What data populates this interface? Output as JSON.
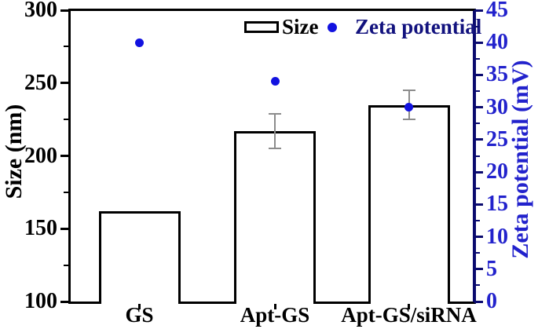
{
  "chart_data": {
    "type": "bar",
    "categories": [
      "GS",
      "Apt-GS",
      "Apt-GS/siRNA"
    ],
    "series": [
      {
        "name": "Size",
        "type": "bar",
        "axis": "left",
        "unit": "nm",
        "values": [
          162,
          217,
          235
        ],
        "errors": [
          0,
          12,
          10
        ]
      },
      {
        "name": "Zeta potential",
        "type": "scatter",
        "axis": "right",
        "unit": "mV",
        "values": [
          40,
          34,
          30
        ]
      }
    ],
    "left_axis": {
      "label": "Size (nm)",
      "min": 100,
      "max": 300,
      "major_ticks": [
        100,
        150,
        200,
        250,
        300
      ],
      "minor_step": 25
    },
    "right_axis": {
      "label": "Zeta potential (mV)",
      "min": 0,
      "max": 45,
      "major_ticks": [
        0,
        5,
        10,
        15,
        20,
        25,
        30,
        35,
        40,
        45
      ],
      "minor_step": 2.5
    },
    "legend": {
      "position": "top-center",
      "items": [
        {
          "label": "Size",
          "swatch": "open-bar"
        },
        {
          "label": "Zeta potential",
          "swatch": "dot"
        }
      ]
    },
    "grid": "off",
    "colors": {
      "bar_fill": "#ffffff",
      "bar_border": "#000000",
      "error_bar": "#8c8c8c",
      "dot_blue": "#1212e0",
      "right_axis_spine": "#0a0a6e",
      "right_tick_label": "#2222cc",
      "right_axis_title": "#2222cc",
      "legend_zeta_text": "#12127e",
      "axis_black": "#000000"
    }
  }
}
